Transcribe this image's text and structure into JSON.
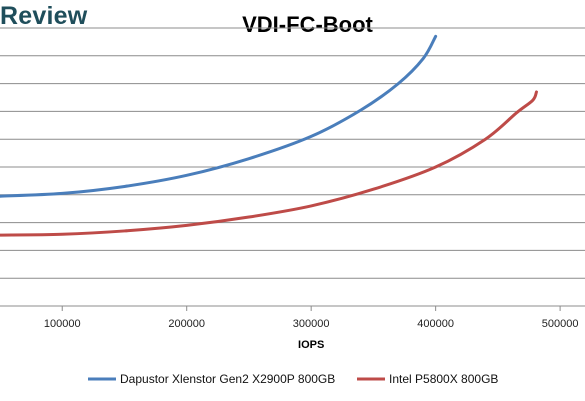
{
  "brand": "Review",
  "chart_data": {
    "type": "line",
    "title": "VDI-FC-Boot",
    "xlabel": "IOPS",
    "ylabel": "",
    "xlim": [
      50000,
      520000
    ],
    "x_ticks": [
      100000,
      200000,
      300000,
      400000,
      500000
    ],
    "y_gridlines": 11,
    "grid": true,
    "legend_position": "bottom",
    "series": [
      {
        "name": "Dapustor Xlenstor Gen2 X2900P 800GB",
        "color": "#4a7ebb",
        "points": [
          [
            50000,
            0.395
          ],
          [
            100000,
            0.405
          ],
          [
            150000,
            0.43
          ],
          [
            200000,
            0.47
          ],
          [
            250000,
            0.53
          ],
          [
            300000,
            0.61
          ],
          [
            340000,
            0.705
          ],
          [
            370000,
            0.8
          ],
          [
            390000,
            0.89
          ],
          [
            400000,
            0.97
          ]
        ]
      },
      {
        "name": "Intel P5800X 800GB",
        "color": "#be4b48",
        "points": [
          [
            50000,
            0.255
          ],
          [
            100000,
            0.258
          ],
          [
            150000,
            0.27
          ],
          [
            200000,
            0.29
          ],
          [
            250000,
            0.32
          ],
          [
            300000,
            0.36
          ],
          [
            350000,
            0.42
          ],
          [
            400000,
            0.5
          ],
          [
            440000,
            0.6
          ],
          [
            465000,
            0.695
          ],
          [
            478000,
            0.74
          ],
          [
            481000,
            0.77
          ]
        ]
      }
    ]
  }
}
